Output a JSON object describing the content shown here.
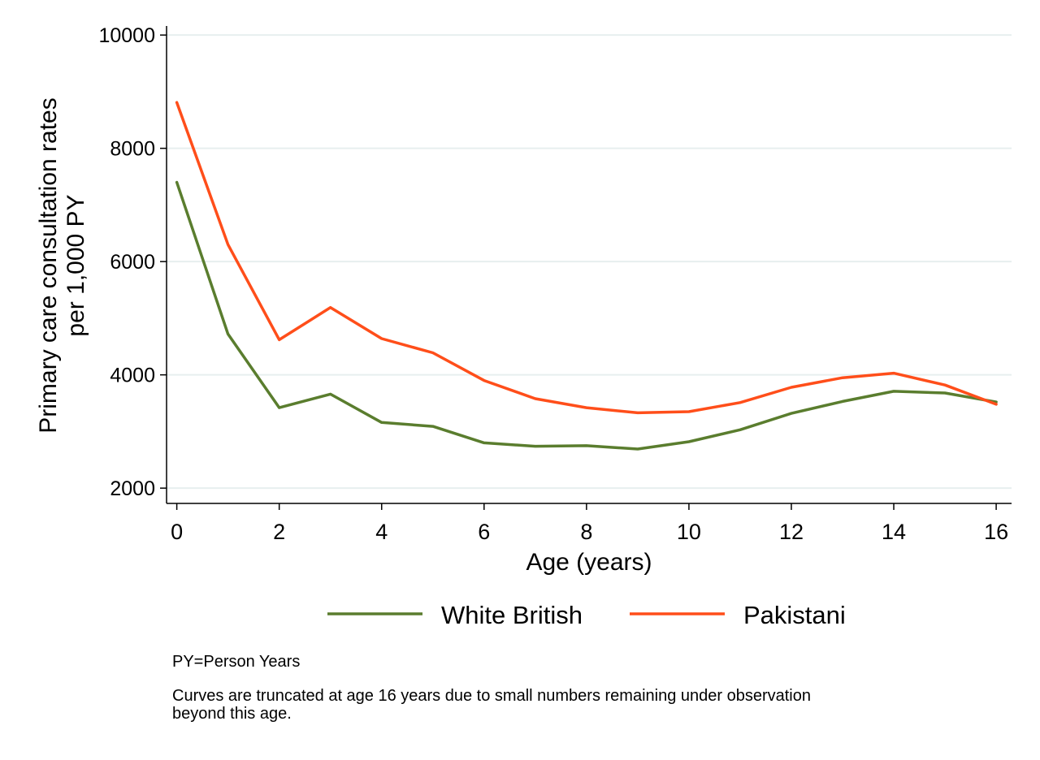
{
  "chart_data": {
    "type": "line",
    "title": "",
    "xlabel": "Age (years)",
    "ylabel_lines": [
      "Primary care consultation rates",
      "per 1,000 PY"
    ],
    "x": [
      0,
      1,
      2,
      3,
      4,
      5,
      6,
      7,
      8,
      9,
      10,
      11,
      12,
      13,
      14,
      15,
      16
    ],
    "xlim": [
      -0.2,
      16.3
    ],
    "ylim": [
      1730,
      10160
    ],
    "xticks": [
      0,
      2,
      4,
      6,
      8,
      10,
      12,
      14,
      16
    ],
    "yticks": [
      2000,
      4000,
      6000,
      8000,
      10000
    ],
    "grid": "horizontal",
    "legend_position": "bottom",
    "series": [
      {
        "name": "White British",
        "color": "#5a7d2e",
        "values": [
          7400,
          4720,
          3420,
          3660,
          3160,
          3090,
          2800,
          2740,
          2750,
          2690,
          2820,
          3030,
          3320,
          3530,
          3710,
          3680,
          3520
        ]
      },
      {
        "name": "Pakistani",
        "color": "#ff4e1a",
        "values": [
          8810,
          6300,
          4620,
          5190,
          4640,
          4390,
          3900,
          3580,
          3420,
          3330,
          3350,
          3510,
          3780,
          3950,
          4030,
          3820,
          3480
        ]
      }
    ]
  },
  "notes": {
    "line1": "PY=Person Years",
    "line2": "Curves are truncated at age 16 years due to small numbers remaining under observation",
    "line3": "beyond this age."
  }
}
